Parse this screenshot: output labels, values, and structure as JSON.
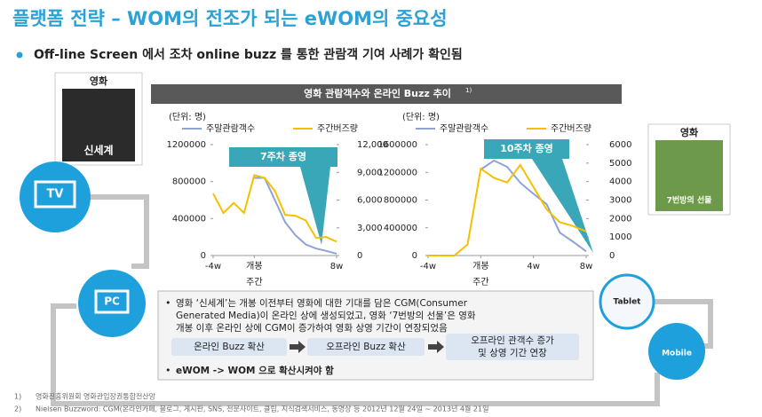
{
  "slide_title": "플랫폼 전략 – WOM의 전조가 되는 eWOM의 중요성",
  "bullet": "Off-line Screen 에서 조차 online buzz 를 통한 관람객 기여 사례가 확인됨",
  "chart_header": {
    "text": "영화 관람객수와 온라인 Buzz 추이",
    "note": "1)"
  },
  "posters": [
    {
      "label": "영화",
      "caption": "신세계"
    },
    {
      "label": "영화",
      "caption": "7번방의 선물"
    }
  ],
  "devices": [
    "TV",
    "PC",
    "Tablet",
    "Mobile"
  ],
  "chart_data": [
    {
      "type": "line",
      "units": "(단위: 명)",
      "annotation": "7주차 종영",
      "xlabel": "주간",
      "x": [
        -4,
        -3,
        -2,
        -1,
        0,
        1,
        2,
        3,
        4,
        5,
        6,
        7,
        8
      ],
      "xlim": [
        -4,
        8
      ],
      "xticks": [
        {
          "value": -4,
          "label": "-4w"
        },
        {
          "value": 0,
          "label": "개봉"
        },
        {
          "value": 8,
          "label": "8w"
        }
      ],
      "ylim": [
        0,
        1200000
      ],
      "yticks": [
        0,
        400000,
        800000,
        1200000
      ],
      "y2lim": [
        0,
        12000
      ],
      "y2ticks": [
        0,
        {
          "value": 3000,
          "label": "3,000"
        },
        {
          "value": 6000,
          "label": "6,000"
        },
        {
          "value": 9000,
          "label": "9,000"
        },
        {
          "value": 12000,
          "label": "12,000"
        }
      ],
      "series": [
        {
          "name": "주말관람객수",
          "color": "#8fa2d8",
          "values": [
            null,
            null,
            null,
            null,
            840000,
            840000,
            600000,
            360000,
            220000,
            120000,
            76000,
            50000,
            20000
          ]
        },
        {
          "name": "주간버즈량",
          "color": "#f5c000",
          "axis": "y2",
          "values": [
            6700,
            4600,
            5700,
            4600,
            8700,
            8400,
            7000,
            4400,
            4300,
            3800,
            1900,
            2000,
            1500
          ]
        }
      ]
    },
    {
      "type": "line",
      "units": "(단위: 명)",
      "annotation": "10주차 종영",
      "xlabel": "주간",
      "x": [
        -4,
        -3,
        -2,
        -1,
        0,
        1,
        2,
        3,
        4,
        5,
        6,
        7,
        8
      ],
      "xlim": [
        -4,
        8
      ],
      "xticks": [
        {
          "value": -4,
          "label": "-4w"
        },
        {
          "value": 0,
          "label": "개봉"
        },
        {
          "value": 4,
          "label": "4w"
        },
        {
          "value": 8,
          "label": "8w"
        }
      ],
      "ylim": [
        0,
        1600000
      ],
      "yticks": [
        0,
        400000,
        800000,
        1200000,
        1600000
      ],
      "y2lim": [
        0,
        6000
      ],
      "y2ticks": [
        0,
        1000,
        2000,
        3000,
        4000,
        5000,
        6000
      ],
      "series": [
        {
          "name": "주말관람객수",
          "color": "#8fa2d8",
          "values": [
            null,
            null,
            null,
            null,
            1240000,
            1370000,
            1280000,
            1050000,
            890000,
            740000,
            330000,
            200000,
            60000
          ]
        },
        {
          "name": "주간버즈량",
          "color": "#f5c000",
          "axis": "y2",
          "values": [
            0,
            0,
            0,
            600,
            4700,
            4200,
            3950,
            4900,
            3700,
            2500,
            1800,
            1600,
            1300
          ]
        }
      ]
    }
  ],
  "callout": {
    "lines": [
      "영화 ‘신세계’는 개봉 이전부터 영화에 대한 기대를 담은 CGM(Consumer",
      "Generated Media)이 온라인 상에 생성되었고, 영화 ‘7번방의 선물’은 영화",
      "개봉 이후 온라인 상에 CGM이 증가하여 영화 상영 기간이 연장되었음"
    ],
    "flow": [
      "온라인 Buzz 확산",
      "오프라인 Buzz 확산",
      "오프라인 관객수 증가",
      "및 상영 기간 연장"
    ],
    "conclusion": "eWOM -> WOM 으로 확산시켜야 함"
  },
  "footnotes": [
    {
      "num": "1)",
      "text": "영화진흥위원회 영화관입장권통합전산망"
    },
    {
      "num": "2)",
      "text": "Nielsen Buzzword: CGM(온라인카페, 블로그, 게시판, SNS, 전문사이트, 클립, 지식검색서비스, 동영상 등 2012년 12월 24일 ~ 2013년 4월 21일"
    }
  ]
}
